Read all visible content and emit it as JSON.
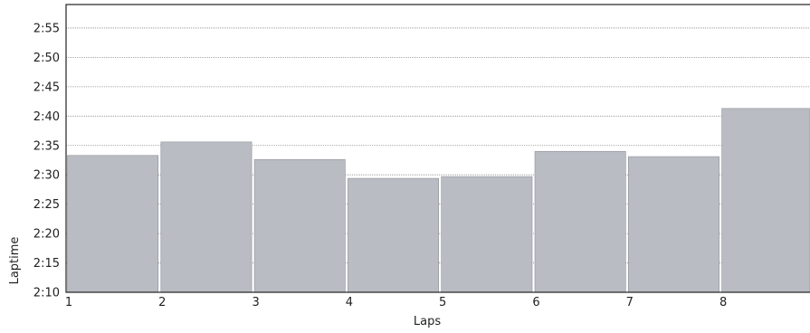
{
  "chart_data": {
    "type": "bar",
    "xlabel": "Laps",
    "ylabel": "Laptime",
    "y_ticks": [
      "2:10",
      "2:15",
      "2:20",
      "2:25",
      "2:30",
      "2:35",
      "2:40",
      "2:45",
      "2:50",
      "2:55"
    ],
    "x_ticks": [
      "1",
      "2",
      "3",
      "4",
      "5",
      "6",
      "7",
      "8"
    ],
    "ylim": [
      130,
      179
    ],
    "grid": "horizontal",
    "bar_color": "#b9bcc3",
    "series": [
      {
        "laps": [
          1,
          2,
          3,
          4,
          5,
          6,
          7,
          8
        ],
        "values_seconds": [
          153.3,
          155.6,
          152.6,
          149.4,
          149.7,
          154.0,
          153.1,
          161.3
        ]
      }
    ]
  }
}
